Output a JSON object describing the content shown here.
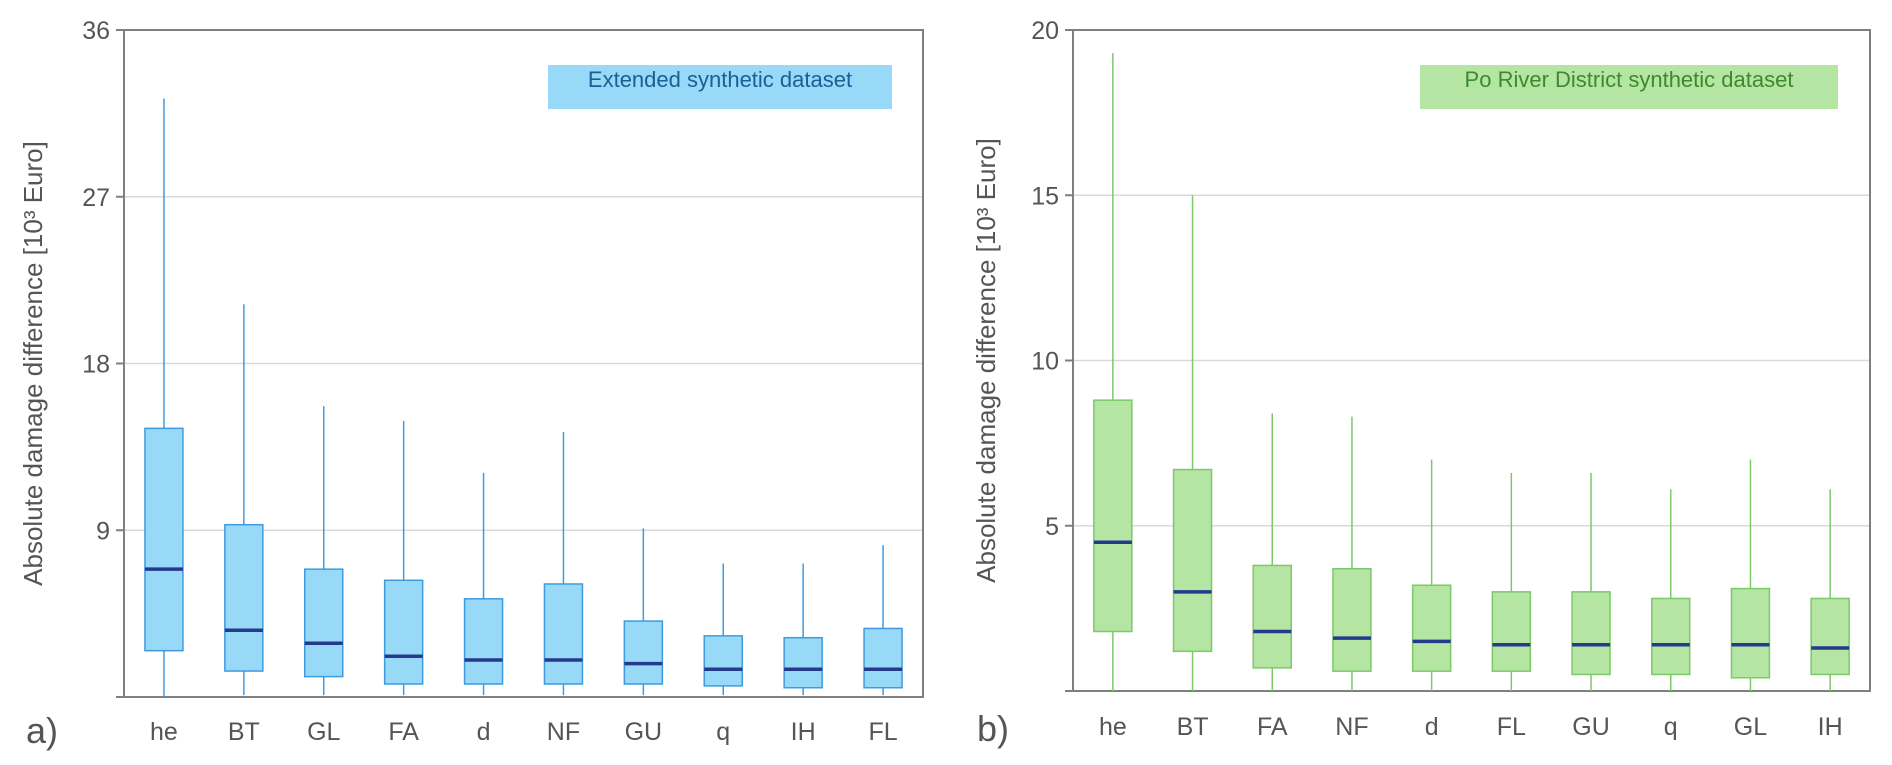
{
  "chart_data": [
    {
      "type": "box",
      "panel_label": "a)",
      "legend": "Extended synthetic dataset",
      "ylabel": "Absolute damage difference [10³ Euro]",
      "ylim": [
        0,
        36
      ],
      "yticks": [
        9,
        18,
        27,
        36
      ],
      "colors": {
        "fill": "#97d9f6",
        "stroke": "#3f9be0",
        "median": "#253a8c",
        "legend_text": "#1a5f96"
      },
      "boxes": [
        {
          "category": "he",
          "min": 0,
          "q1": 2.5,
          "median": 6.9,
          "q3": 14.5,
          "max": 32.3
        },
        {
          "category": "BT",
          "min": 0.1,
          "q1": 1.4,
          "median": 3.6,
          "q3": 9.3,
          "max": 21.2
        },
        {
          "category": "GL",
          "min": 0.1,
          "q1": 1.1,
          "median": 2.9,
          "q3": 6.9,
          "max": 15.7
        },
        {
          "category": "FA",
          "min": 0.1,
          "q1": 0.7,
          "median": 2.2,
          "q3": 6.3,
          "max": 14.9
        },
        {
          "category": "d",
          "min": 0.1,
          "q1": 0.7,
          "median": 2.0,
          "q3": 5.3,
          "max": 12.1
        },
        {
          "category": "NF",
          "min": 0.1,
          "q1": 0.7,
          "median": 2.0,
          "q3": 6.1,
          "max": 14.3
        },
        {
          "category": "GU",
          "min": 0.1,
          "q1": 0.7,
          "median": 1.8,
          "q3": 4.1,
          "max": 9.1
        },
        {
          "category": "q",
          "min": 0.1,
          "q1": 0.6,
          "median": 1.5,
          "q3": 3.3,
          "max": 7.2
        },
        {
          "category": "IH",
          "min": 0.1,
          "q1": 0.5,
          "median": 1.5,
          "q3": 3.2,
          "max": 7.2
        },
        {
          "category": "FL",
          "min": 0.1,
          "q1": 0.5,
          "median": 1.5,
          "q3": 3.7,
          "max": 8.2
        }
      ]
    },
    {
      "type": "box",
      "panel_label": "b)",
      "legend": "Po River District synthetic dataset",
      "ylabel": "Absolute damage difference [10³ Euro]",
      "ylim": [
        0,
        20
      ],
      "yticks": [
        5,
        10,
        15,
        20
      ],
      "colors": {
        "fill": "#b5e5a3",
        "stroke": "#7cc96b",
        "median": "#253a8c",
        "legend_text": "#3d8a2c"
      },
      "boxes": [
        {
          "category": "he",
          "min": 0,
          "q1": 1.8,
          "median": 4.5,
          "q3": 8.8,
          "max": 19.3
        },
        {
          "category": "BT",
          "min": 0,
          "q1": 1.2,
          "median": 3.0,
          "q3": 6.7,
          "max": 15.0
        },
        {
          "category": "FA",
          "min": 0,
          "q1": 0.7,
          "median": 1.8,
          "q3": 3.8,
          "max": 8.4
        },
        {
          "category": "NF",
          "min": 0,
          "q1": 0.6,
          "median": 1.6,
          "q3": 3.7,
          "max": 8.3
        },
        {
          "category": "d",
          "min": 0,
          "q1": 0.6,
          "median": 1.5,
          "q3": 3.2,
          "max": 7.0
        },
        {
          "category": "FL",
          "min": 0,
          "q1": 0.6,
          "median": 1.4,
          "q3": 3.0,
          "max": 6.6
        },
        {
          "category": "GU",
          "min": 0,
          "q1": 0.5,
          "median": 1.4,
          "q3": 3.0,
          "max": 6.6
        },
        {
          "category": "q",
          "min": 0,
          "q1": 0.5,
          "median": 1.4,
          "q3": 2.8,
          "max": 6.1
        },
        {
          "category": "GL",
          "min": 0,
          "q1": 0.4,
          "median": 1.4,
          "q3": 3.1,
          "max": 7.0
        },
        {
          "category": "IH",
          "min": 0,
          "q1": 0.5,
          "median": 1.3,
          "q3": 2.8,
          "max": 6.1
        }
      ]
    }
  ]
}
